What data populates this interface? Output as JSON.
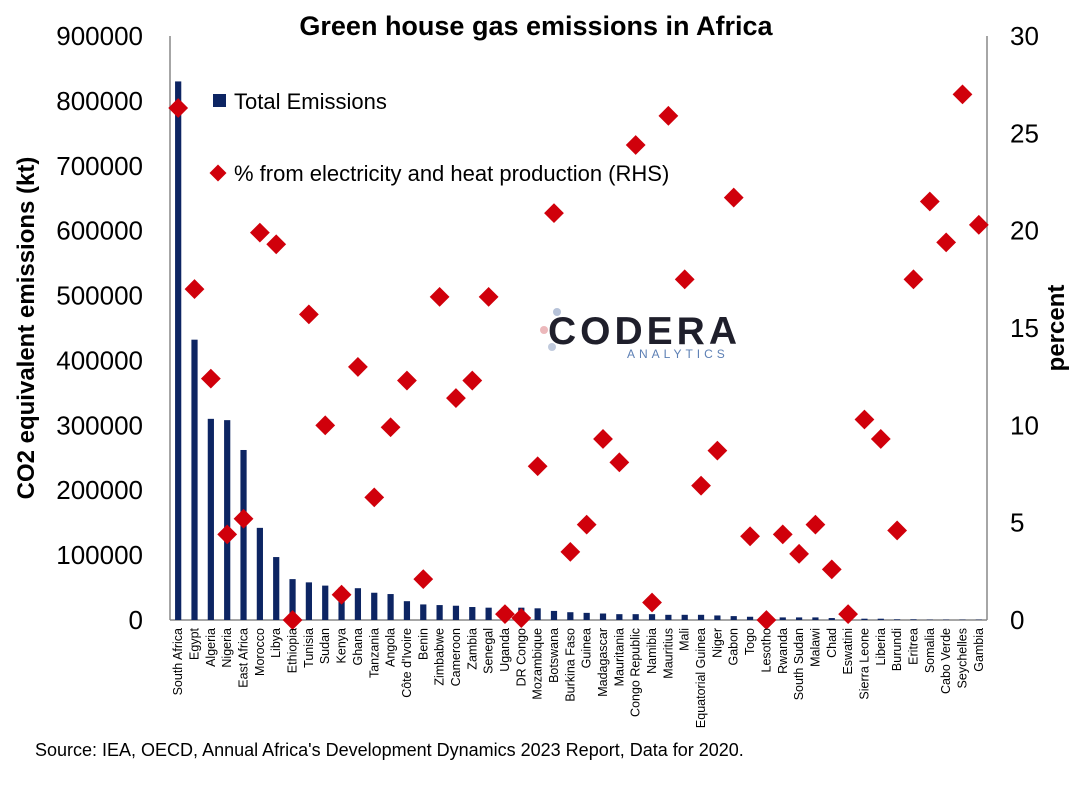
{
  "chart_data": {
    "type": "bar",
    "title": "Green house gas emissions in Africa",
    "ylabel": "CO2 equivalent emissions (kt)",
    "y2label": "percent",
    "ylim": [
      0,
      900000
    ],
    "y2lim": [
      0,
      30
    ],
    "yticks": [
      "0",
      "100000",
      "200000",
      "300000",
      "400000",
      "500000",
      "600000",
      "700000",
      "800000",
      "900000"
    ],
    "y2ticks": [
      "0",
      "5",
      "10",
      "15",
      "20",
      "25",
      "30"
    ],
    "legend_position": "top-left",
    "grid": false,
    "categories": [
      "South Africa",
      "Egypt",
      "Algeria",
      "Nigeria",
      "East Africa",
      "Morocco",
      "Libya",
      "Ethiopia",
      "Tunisia",
      "Sudan",
      "Kenya",
      "Ghana",
      "Tanzania",
      "Angola",
      "Côte d'Ivoire",
      "Benin",
      "Zimbabwe",
      "Cameroon",
      "Zambia",
      "Senegal",
      "Uganda",
      "DR Congo",
      "Mozambique",
      "Botswana",
      "Burkina Faso",
      "Guinea",
      "Madagascar",
      "Mauritania",
      "Congo Republic",
      "Namibia",
      "Mauritius",
      "Mali",
      "Equatorial Guinea",
      "Niger",
      "Gabon",
      "Togo",
      "Lesotho",
      "Rwanda",
      "South Sudan",
      "Malawi",
      "Chad",
      "Eswatini",
      "Sierra Leone",
      "Liberia",
      "Burundi",
      "Eritrea",
      "Somalia",
      "Cabo Verde",
      "Seychelles",
      "Gambia"
    ],
    "series": [
      {
        "name": "Total Emissions",
        "kind": "bar",
        "axis": "left",
        "color": "#0d2563",
        "values": [
          830000,
          432000,
          310000,
          308000,
          262000,
          142000,
          97000,
          63000,
          58000,
          53000,
          50000,
          49000,
          42000,
          40000,
          29000,
          24000,
          23000,
          22000,
          20000,
          19000,
          20000,
          19000,
          18000,
          14000,
          12000,
          11000,
          10000,
          9000,
          9000,
          9000,
          8000,
          8000,
          8000,
          7000,
          6000,
          5000,
          4000,
          4000,
          4000,
          4000,
          3000,
          3000,
          2000,
          2000,
          1000,
          1000,
          500,
          500,
          500,
          500
        ]
      },
      {
        "name": "% from electricity and heat production (RHS)",
        "kind": "scatter",
        "axis": "right",
        "color": "#d0000b",
        "values": [
          26.3,
          17.0,
          12.4,
          4.4,
          5.2,
          19.9,
          19.3,
          0,
          15.7,
          10.0,
          1.3,
          13.0,
          6.3,
          9.9,
          12.3,
          2.1,
          16.6,
          11.4,
          12.3,
          16.6,
          0.3,
          0.1,
          7.9,
          20.9,
          3.5,
          4.9,
          9.3,
          8.1,
          24.4,
          0.9,
          25.9,
          17.5,
          6.9,
          8.7,
          21.7,
          4.3,
          0,
          4.4,
          3.4,
          4.9,
          2.6,
          0.3,
          10.3,
          9.3,
          4.6,
          17.5,
          21.5,
          19.4,
          27.0,
          20.3
        ]
      }
    ]
  },
  "logo": {
    "name": "CODERA",
    "sub": "ANALYTICS"
  },
  "source": "Source: IEA, OECD, Annual Africa's Development Dynamics 2023 Report, Data for 2020.",
  "colors": {
    "bar": "#0d2563",
    "marker": "#d0000b",
    "logo_sub": "#5c7fb4"
  }
}
